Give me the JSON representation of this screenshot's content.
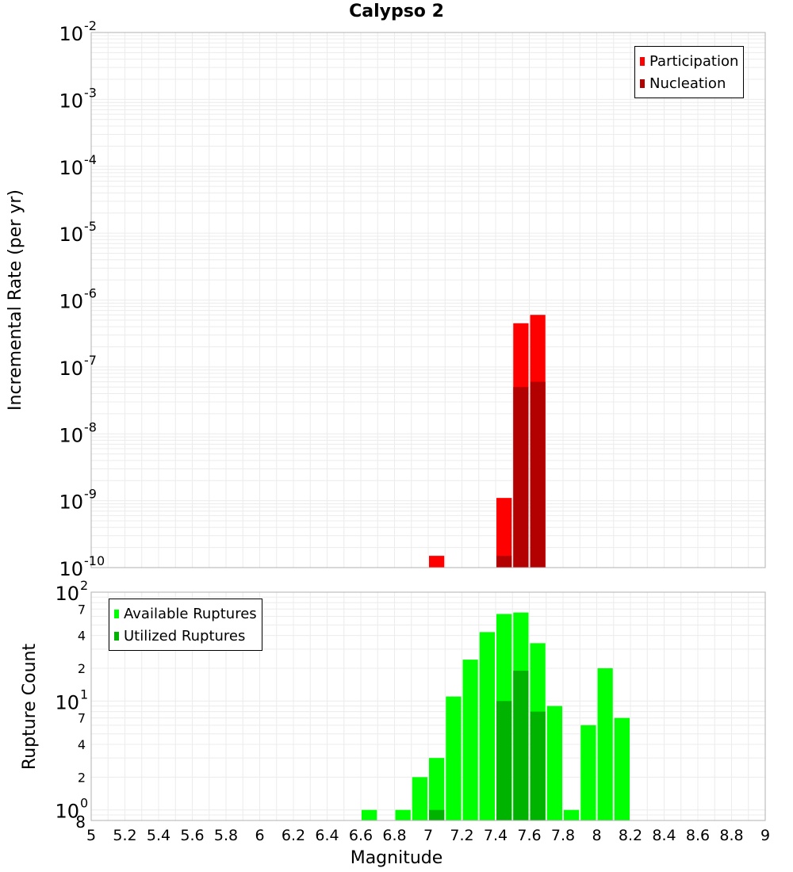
{
  "title": "Calypso 2",
  "colors": {
    "participation": "#ff0000",
    "nucleation": "#b30000",
    "available": "#00ff00",
    "utilized": "#00b300",
    "grid": "#ececec",
    "axis_line": "#b0b0b0"
  },
  "chart_data": [
    {
      "type": "bar",
      "title": "Calypso 2",
      "ylabel": "Incremental Rate (per yr)",
      "xlabel": "Magnitude",
      "y_scale": "log",
      "ylim": [
        1e-10,
        0.01
      ],
      "xlim": [
        5,
        9
      ],
      "bin_width": 0.1,
      "legend": {
        "position": "top-right",
        "entries": [
          "Participation",
          "Nucleation"
        ]
      },
      "y_ticks": [
        {
          "base": "10",
          "exp": "-10"
        },
        {
          "base": "10",
          "exp": "-9"
        },
        {
          "base": "10",
          "exp": "-8"
        },
        {
          "base": "10",
          "exp": "-7"
        },
        {
          "base": "10",
          "exp": "-6"
        },
        {
          "base": "10",
          "exp": "-5"
        },
        {
          "base": "10",
          "exp": "-4"
        },
        {
          "base": "10",
          "exp": "-3"
        },
        {
          "base": "10",
          "exp": "-2"
        }
      ],
      "series": [
        {
          "name": "Participation",
          "x": [
            7.05,
            7.45,
            7.55,
            7.65
          ],
          "values": [
            1.5e-10,
            1.1e-09,
            4.5e-07,
            6e-07
          ]
        },
        {
          "name": "Nucleation",
          "x": [
            7.45,
            7.55,
            7.65
          ],
          "values": [
            1.5e-10,
            5e-08,
            6e-08
          ]
        }
      ]
    },
    {
      "type": "bar",
      "ylabel": "Rupture Count",
      "xlabel": "Magnitude",
      "y_scale": "log",
      "ylim": [
        0.8,
        100
      ],
      "xlim": [
        5,
        9
      ],
      "bin_width": 0.1,
      "legend": {
        "position": "top-left",
        "entries": [
          "Available Ruptures",
          "Utilized Ruptures"
        ]
      },
      "x_tick_labels": [
        "5",
        "5.2",
        "5.4",
        "5.6",
        "5.8",
        "6",
        "6.2",
        "6.4",
        "6.6",
        "6.8",
        "7",
        "7.2",
        "7.4",
        "7.6",
        "7.8",
        "8",
        "8.2",
        "8.4",
        "8.6",
        "8.8",
        "9"
      ],
      "y_major_ticks": [
        {
          "base": "10",
          "exp": "0"
        },
        {
          "base": "10",
          "exp": "1"
        },
        {
          "base": "10",
          "exp": "2"
        }
      ],
      "y_minor_tick_labels": [
        {
          "value": 0.8,
          "label": "8"
        },
        {
          "value": 2,
          "label": "2"
        },
        {
          "value": 4,
          "label": "4"
        },
        {
          "value": 7,
          "label": "7"
        },
        {
          "value": 20,
          "label": "2"
        },
        {
          "value": 40,
          "label": "4"
        },
        {
          "value": 70,
          "label": "7"
        }
      ],
      "series": [
        {
          "name": "Available Ruptures",
          "x": [
            6.65,
            6.85,
            6.95,
            7.05,
            7.15,
            7.25,
            7.35,
            7.45,
            7.55,
            7.65,
            7.75,
            7.85,
            7.95,
            8.05,
            8.15
          ],
          "values": [
            1,
            1,
            2,
            3,
            11,
            24,
            43,
            63,
            65,
            34,
            9,
            1,
            6,
            20,
            7
          ]
        },
        {
          "name": "Utilized Ruptures",
          "x": [
            7.05,
            7.45,
            7.55,
            7.65
          ],
          "values": [
            1,
            10,
            19,
            8
          ]
        }
      ]
    }
  ]
}
